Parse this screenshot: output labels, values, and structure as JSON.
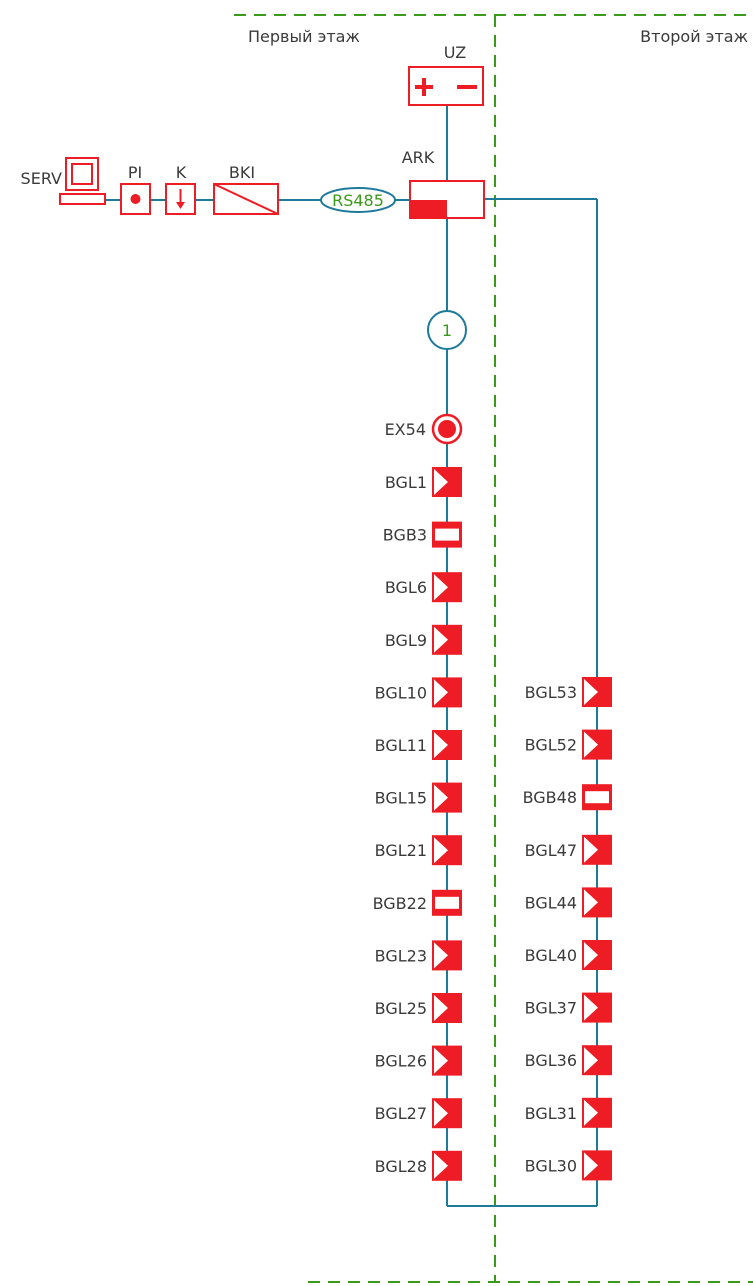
{
  "floors": {
    "first": "Первый этаж",
    "second": "Второй этаж"
  },
  "devices": {
    "serv": "SERV",
    "pi": "PI",
    "k": "K",
    "bki": "BKI",
    "uz": "UZ",
    "ark": "ARK",
    "rs485": "RS485",
    "loop_number": "1",
    "ex54": "EX54"
  },
  "left_column": [
    {
      "label": "BGL1",
      "kind": "detector"
    },
    {
      "label": "BGB3",
      "kind": "breaker"
    },
    {
      "label": "BGL6",
      "kind": "detector"
    },
    {
      "label": "BGL9",
      "kind": "detector"
    },
    {
      "label": "BGL10",
      "kind": "detector"
    },
    {
      "label": "BGL11",
      "kind": "detector"
    },
    {
      "label": "BGL15",
      "kind": "detector"
    },
    {
      "label": "BGL21",
      "kind": "detector"
    },
    {
      "label": "BGB22",
      "kind": "breaker"
    },
    {
      "label": "BGL23",
      "kind": "detector"
    },
    {
      "label": "BGL25",
      "kind": "detector"
    },
    {
      "label": "BGL26",
      "kind": "detector"
    },
    {
      "label": "BGL27",
      "kind": "detector"
    },
    {
      "label": "BGL28",
      "kind": "detector"
    }
  ],
  "right_column": [
    {
      "label": "BGL53",
      "kind": "detector"
    },
    {
      "label": "BGL52",
      "kind": "detector"
    },
    {
      "label": "BGB48",
      "kind": "breaker"
    },
    {
      "label": "BGL47",
      "kind": "detector"
    },
    {
      "label": "BGL44",
      "kind": "detector"
    },
    {
      "label": "BGL40",
      "kind": "detector"
    },
    {
      "label": "BGL37",
      "kind": "detector"
    },
    {
      "label": "BGL36",
      "kind": "detector"
    },
    {
      "label": "BGL31",
      "kind": "detector"
    },
    {
      "label": "BGL30",
      "kind": "detector"
    }
  ],
  "colors": {
    "wire": "#1e7a9a",
    "device": "#ee1c24",
    "boundary": "#3a9a1a",
    "bus_label": "#3a9a1a",
    "text": "#3a3a3a"
  }
}
